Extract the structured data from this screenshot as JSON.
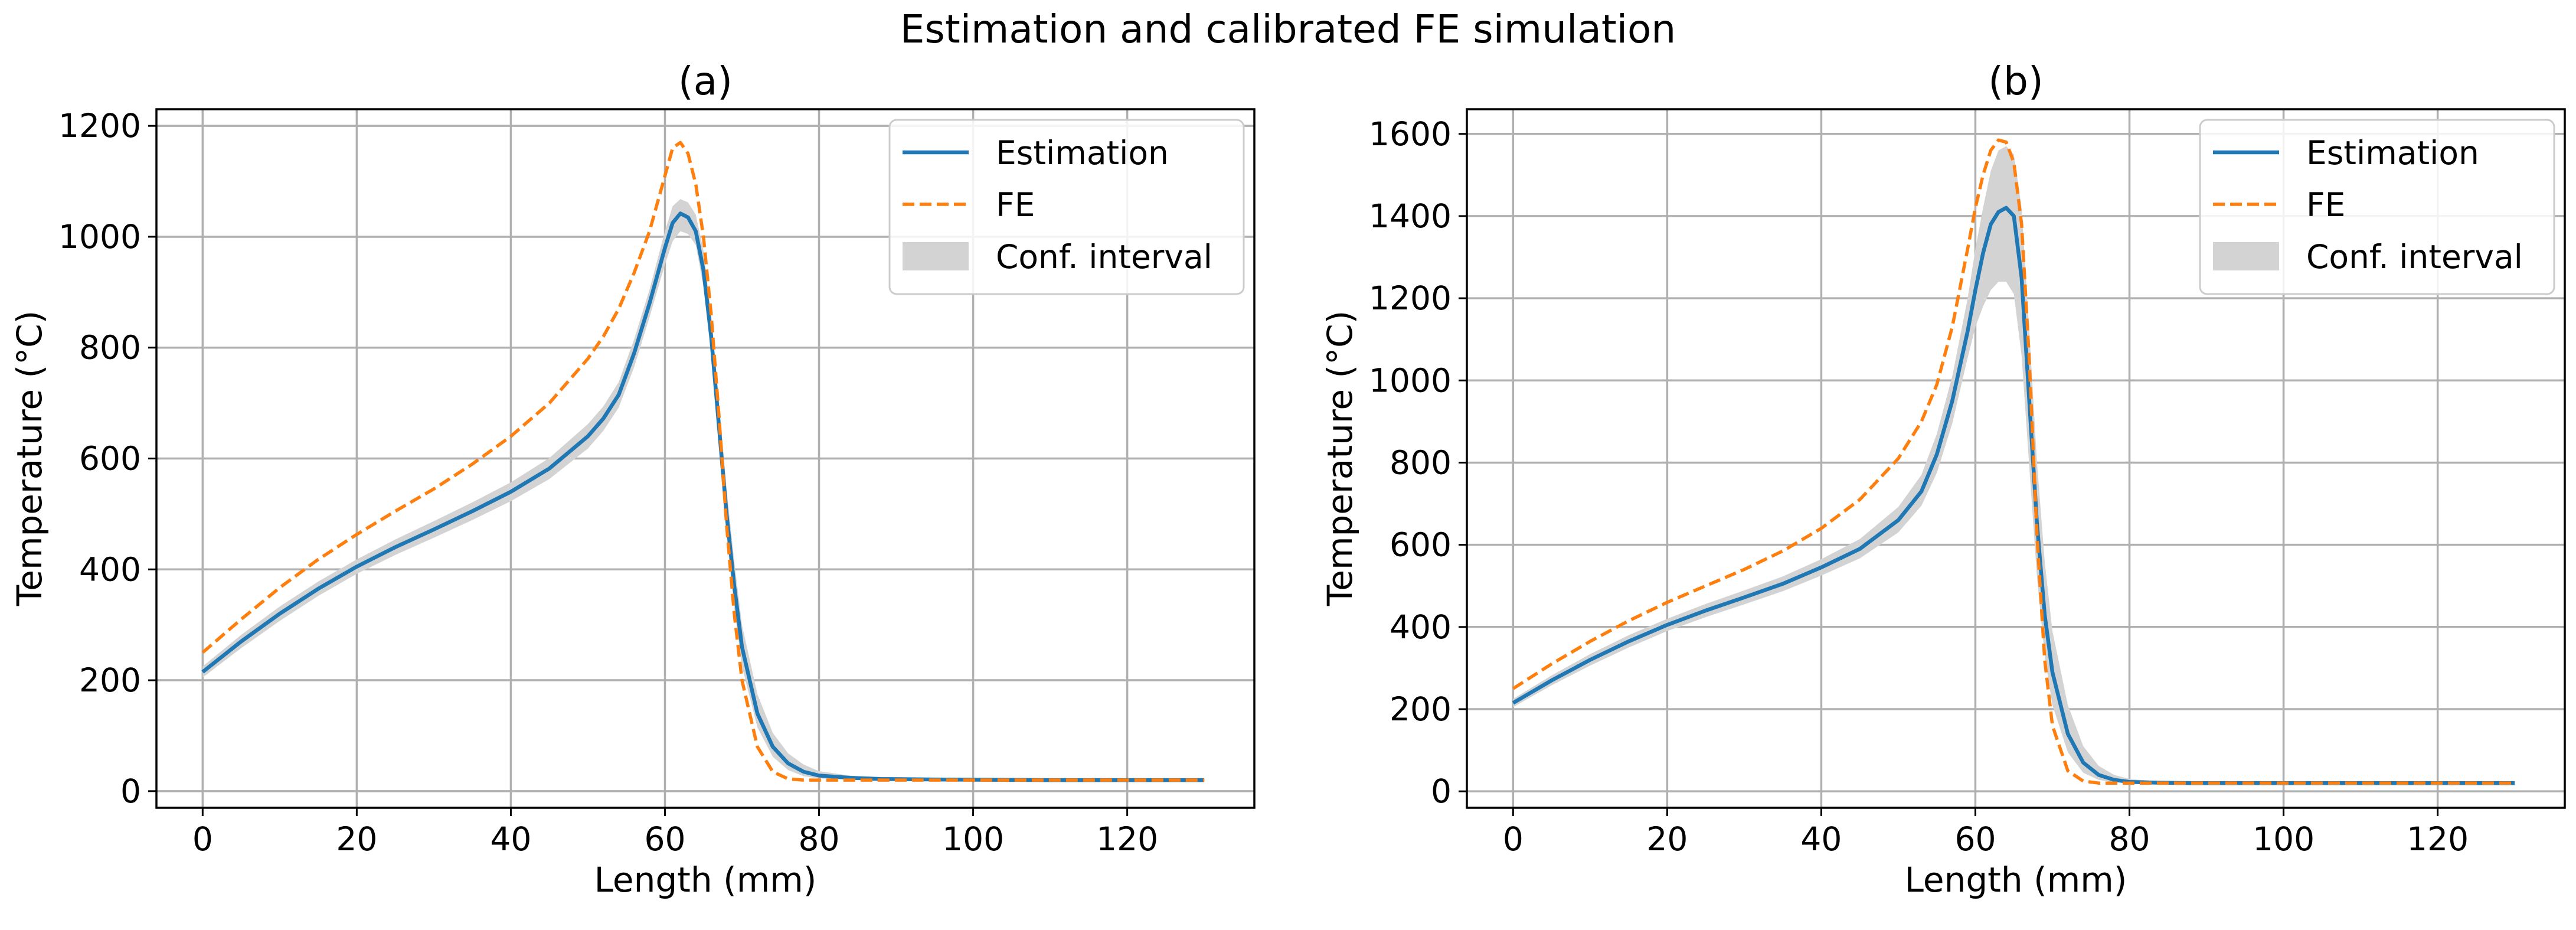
{
  "colors": {
    "estimation": "#1f77b4",
    "fe": "#ff7f0e",
    "band": "#d3d3d3",
    "grid": "#b0b0b0"
  },
  "chart_data": {
    "title": "Estimation and calibrated FE simulation",
    "type": "line",
    "panels": [
      {
        "title": "(a)",
        "xlabel": "Length (mm)",
        "ylabel": "Temperature (°C)",
        "xlim": [
          -6,
          136.5
        ],
        "ylim": [
          -30,
          1230
        ],
        "xticks": [
          0,
          20,
          40,
          60,
          80,
          100,
          120
        ],
        "yticks": [
          0,
          200,
          400,
          600,
          800,
          1000,
          1200
        ],
        "legend": {
          "position": "top-right",
          "entries": [
            "Estimation",
            "FE",
            "Conf. interval"
          ]
        },
        "grid": true,
        "series": [
          {
            "name": "Estimation",
            "style": "solid",
            "x": [
              0,
              5,
              10,
              15,
              20,
              25,
              30,
              35,
              40,
              45,
              50,
              52,
              54,
              56,
              58,
              60,
              61,
              62,
              63,
              64,
              65,
              66,
              67,
              68,
              69,
              70,
              72,
              74,
              76,
              78,
              80,
              84,
              88,
              95,
              110,
              130
            ],
            "y": [
              215,
              270,
              320,
              365,
              405,
              440,
              472,
              505,
              540,
              582,
              640,
              672,
              715,
              790,
              880,
              980,
              1025,
              1042,
              1035,
              1010,
              940,
              820,
              660,
              500,
              370,
              260,
              140,
              80,
              50,
              35,
              28,
              24,
              22,
              21,
              20,
              20
            ]
          },
          {
            "name": "FE",
            "style": "dashed",
            "x": [
              0,
              5,
              10,
              15,
              20,
              25,
              30,
              35,
              40,
              45,
              50,
              52,
              54,
              56,
              58,
              60,
              61,
              62,
              63,
              64,
              65,
              66,
              67,
              68,
              69,
              70,
              72,
              74,
              76,
              78,
              80,
              84,
              88,
              95,
              110,
              130
            ],
            "y": [
              250,
              310,
              367,
              418,
              463,
              505,
              545,
              590,
              640,
              700,
              780,
              820,
              870,
              935,
              1010,
              1110,
              1160,
              1170,
              1150,
              1095,
              1000,
              860,
              680,
              480,
              320,
              200,
              80,
              35,
              22,
              20,
              20,
              20,
              20,
              20,
              20,
              20
            ]
          },
          {
            "name": "Conf. interval",
            "style": "band",
            "x": [
              0,
              5,
              10,
              15,
              20,
              25,
              30,
              35,
              40,
              45,
              50,
              52,
              54,
              56,
              58,
              60,
              61,
              62,
              63,
              64,
              65,
              66,
              67,
              68,
              69,
              70,
              72,
              74,
              76,
              78,
              80,
              84,
              88,
              95,
              110,
              130
            ],
            "lower": [
              205,
              258,
              307,
              352,
              392,
              426,
              457,
              489,
              523,
              563,
              618,
              650,
              692,
              765,
              855,
              950,
              992,
              1010,
              1005,
              985,
              910,
              785,
              620,
              460,
              330,
              225,
              115,
              62,
              38,
              27,
              23,
              21,
              20,
              20,
              20,
              20
            ],
            "upper": [
              225,
              282,
              333,
              378,
              418,
              454,
              487,
              521,
              557,
              601,
              662,
              694,
              738,
              815,
              905,
              1010,
              1055,
              1068,
              1062,
              1040,
              975,
              860,
              705,
              545,
              415,
              300,
              175,
              105,
              68,
              48,
              36,
              28,
              24,
              22,
              21,
              21
            ]
          }
        ]
      },
      {
        "title": "(b)",
        "xlabel": "Length (mm)",
        "ylabel": "Temperature (°C)",
        "xlim": [
          -6,
          136.5
        ],
        "ylim": [
          -40,
          1660
        ],
        "xticks": [
          0,
          20,
          40,
          60,
          80,
          100,
          120
        ],
        "yticks": [
          0,
          200,
          400,
          600,
          800,
          1000,
          1200,
          1400,
          1600
        ],
        "legend": {
          "position": "top-right",
          "entries": [
            "Estimation",
            "FE",
            "Conf. interval"
          ]
        },
        "grid": true,
        "series": [
          {
            "name": "Estimation",
            "style": "solid",
            "x": [
              0,
              5,
              10,
              15,
              20,
              25,
              30,
              35,
              40,
              45,
              50,
              53,
              55,
              57,
              59,
              60,
              61,
              62,
              63,
              64,
              65,
              66,
              67,
              68,
              69,
              70,
              72,
              74,
              76,
              78,
              80,
              84,
              88,
              95,
              110,
              130
            ],
            "y": [
              215,
              270,
              320,
              365,
              405,
              440,
              472,
              505,
              545,
              590,
              660,
              730,
              820,
              950,
              1120,
              1220,
              1310,
              1380,
              1410,
              1420,
              1400,
              1250,
              950,
              650,
              430,
              290,
              140,
              70,
              40,
              28,
              23,
              21,
              20,
              20,
              20,
              20
            ]
          },
          {
            "name": "FE",
            "style": "dashed",
            "x": [
              0,
              5,
              10,
              15,
              20,
              25,
              30,
              35,
              40,
              45,
              50,
              53,
              55,
              57,
              59,
              60,
              61,
              62,
              63,
              64,
              65,
              66,
              67,
              68,
              69,
              70,
              72,
              74,
              76,
              78,
              80,
              84,
              88,
              95,
              110,
              130
            ],
            "y": [
              250,
              310,
              365,
              415,
              460,
              500,
              540,
              585,
              640,
              710,
              810,
              900,
              990,
              1130,
              1320,
              1420,
              1500,
              1560,
              1585,
              1580,
              1530,
              1380,
              1050,
              620,
              320,
              160,
              50,
              25,
              20,
              20,
              20,
              20,
              20,
              20,
              20,
              20
            ]
          },
          {
            "name": "Conf. interval",
            "style": "band",
            "x": [
              0,
              5,
              10,
              15,
              20,
              25,
              30,
              35,
              40,
              45,
              50,
              53,
              55,
              57,
              59,
              60,
              61,
              62,
              63,
              64,
              65,
              66,
              67,
              68,
              69,
              70,
              72,
              74,
              76,
              78,
              80,
              84,
              88,
              95,
              110,
              130
            ],
            "lower": [
              205,
              258,
              306,
              350,
              390,
              424,
              455,
              487,
              525,
              567,
              630,
              695,
              775,
              895,
              1055,
              1130,
              1180,
              1220,
              1240,
              1240,
              1210,
              1060,
              790,
              520,
              330,
              210,
              95,
              45,
              28,
              22,
              20,
              20,
              20,
              20,
              20,
              20
            ],
            "upper": [
              225,
              282,
              334,
              380,
              420,
              456,
              489,
              523,
              565,
              614,
              692,
              770,
              870,
              1010,
              1200,
              1320,
              1420,
              1510,
              1560,
              1570,
              1550,
              1420,
              1120,
              800,
              560,
              390,
              210,
              110,
              62,
              40,
              30,
              24,
              22,
              21,
              20,
              20
            ]
          }
        ]
      }
    ]
  }
}
